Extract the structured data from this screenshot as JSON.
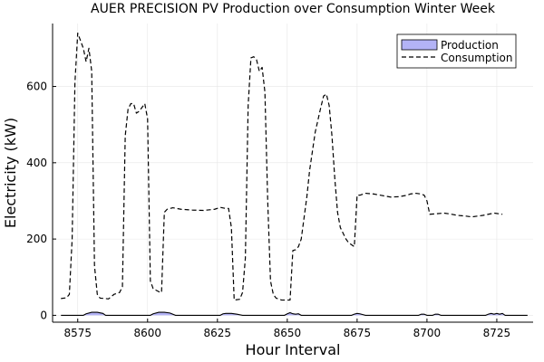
{
  "chart_data": {
    "type": "line",
    "title": "AUER PRECISION PV Production over Consumption Winter Week",
    "xlabel": "Hour Interval",
    "ylabel": "Electricity (kW)",
    "xlim": [
      8566,
      8738
    ],
    "ylim": [
      -18,
      765
    ],
    "x_ticks": [
      8575,
      8600,
      8625,
      8650,
      8675,
      8700,
      8725
    ],
    "y_ticks": [
      0,
      200,
      400,
      600
    ],
    "grid": true,
    "legend_position": "top-right",
    "colors": {
      "production_fill": "#b3b3f6",
      "production_line": "#000000",
      "consumption_line": "#000000"
    },
    "series": [
      {
        "name": "Production",
        "style": "filled-area",
        "points": [
          [
            8569,
            0
          ],
          [
            8577,
            0
          ],
          [
            8578,
            4
          ],
          [
            8580,
            8
          ],
          [
            8582,
            8
          ],
          [
            8584,
            5
          ],
          [
            8585,
            0
          ],
          [
            8601,
            0
          ],
          [
            8602,
            4
          ],
          [
            8604,
            8
          ],
          [
            8606,
            8
          ],
          [
            8608,
            6
          ],
          [
            8610,
            0
          ],
          [
            8626,
            0
          ],
          [
            8627,
            4
          ],
          [
            8628,
            5
          ],
          [
            8630,
            5
          ],
          [
            8632,
            3
          ],
          [
            8634,
            0
          ],
          [
            8649,
            0
          ],
          [
            8650,
            4
          ],
          [
            8651,
            7
          ],
          [
            8652,
            4
          ],
          [
            8653,
            3
          ],
          [
            8654,
            4
          ],
          [
            8655,
            0
          ],
          [
            8673,
            0
          ],
          [
            8674,
            3
          ],
          [
            8675,
            5
          ],
          [
            8676,
            4
          ],
          [
            8678,
            0
          ],
          [
            8697,
            0
          ],
          [
            8698,
            3
          ],
          [
            8699,
            3
          ],
          [
            8700,
            0
          ],
          [
            8702,
            0
          ],
          [
            8703,
            3
          ],
          [
            8704,
            3
          ],
          [
            8705,
            0
          ],
          [
            8721,
            0
          ],
          [
            8722,
            3
          ],
          [
            8723,
            5
          ],
          [
            8724,
            3
          ],
          [
            8725,
            5
          ],
          [
            8726,
            3
          ],
          [
            8727,
            5
          ],
          [
            8728,
            0
          ],
          [
            8736,
            0
          ]
        ]
      },
      {
        "name": "Consumption",
        "style": "dashed-line",
        "points": [
          [
            8569,
            44
          ],
          [
            8571,
            46
          ],
          [
            8572,
            55
          ],
          [
            8573,
            200
          ],
          [
            8574,
            610
          ],
          [
            8575,
            740
          ],
          [
            8576,
            720
          ],
          [
            8577,
            700
          ],
          [
            8578,
            665
          ],
          [
            8579,
            700
          ],
          [
            8580,
            640
          ],
          [
            8581,
            130
          ],
          [
            8582,
            55
          ],
          [
            8583,
            45
          ],
          [
            8585,
            44
          ],
          [
            8586,
            43
          ],
          [
            8588,
            55
          ],
          [
            8590,
            60
          ],
          [
            8591,
            75
          ],
          [
            8592,
            470
          ],
          [
            8593,
            540
          ],
          [
            8594,
            555
          ],
          [
            8595,
            555
          ],
          [
            8596,
            530
          ],
          [
            8597,
            535
          ],
          [
            8598,
            545
          ],
          [
            8599,
            555
          ],
          [
            8600,
            515
          ],
          [
            8601,
            90
          ],
          [
            8602,
            70
          ],
          [
            8604,
            62
          ],
          [
            8605,
            60
          ],
          [
            8606,
            270
          ],
          [
            8607,
            278
          ],
          [
            8609,
            282
          ],
          [
            8612,
            278
          ],
          [
            8616,
            276
          ],
          [
            8620,
            275
          ],
          [
            8624,
            278
          ],
          [
            8626,
            283
          ],
          [
            8628,
            280
          ],
          [
            8629,
            280
          ],
          [
            8630,
            230
          ],
          [
            8631,
            40
          ],
          [
            8633,
            42
          ],
          [
            8634,
            60
          ],
          [
            8635,
            150
          ],
          [
            8636,
            550
          ],
          [
            8637,
            675
          ],
          [
            8638,
            678
          ],
          [
            8639,
            670
          ],
          [
            8640,
            640
          ],
          [
            8641,
            650
          ],
          [
            8642,
            585
          ],
          [
            8643,
            300
          ],
          [
            8644,
            90
          ],
          [
            8645,
            55
          ],
          [
            8646,
            45
          ],
          [
            8648,
            40
          ],
          [
            8650,
            40
          ],
          [
            8651,
            40
          ],
          [
            8652,
            170
          ],
          [
            8653,
            172
          ],
          [
            8654,
            180
          ],
          [
            8655,
            200
          ],
          [
            8657,
            310
          ],
          [
            8658,
            380
          ],
          [
            8660,
            480
          ],
          [
            8662,
            545
          ],
          [
            8663,
            575
          ],
          [
            8664,
            580
          ],
          [
            8665,
            550
          ],
          [
            8666,
            470
          ],
          [
            8667,
            360
          ],
          [
            8668,
            270
          ],
          [
            8669,
            230
          ],
          [
            8671,
            200
          ],
          [
            8672,
            190
          ],
          [
            8674,
            180
          ],
          [
            8675,
            315
          ],
          [
            8676,
            315
          ],
          [
            8678,
            320
          ],
          [
            8681,
            318
          ],
          [
            8684,
            314
          ],
          [
            8687,
            310
          ],
          [
            8690,
            311
          ],
          [
            8693,
            315
          ],
          [
            8694,
            318
          ],
          [
            8696,
            320
          ],
          [
            8698,
            318
          ],
          [
            8699,
            315
          ],
          [
            8700,
            300
          ],
          [
            8701,
            265
          ],
          [
            8703,
            266
          ],
          [
            8706,
            268
          ],
          [
            8708,
            266
          ],
          [
            8711,
            262
          ],
          [
            8714,
            260
          ],
          [
            8716,
            258
          ],
          [
            8718,
            260
          ],
          [
            8720,
            262
          ],
          [
            8722,
            265
          ],
          [
            8724,
            268
          ],
          [
            8726,
            266
          ],
          [
            8727,
            265
          ]
        ]
      }
    ]
  }
}
